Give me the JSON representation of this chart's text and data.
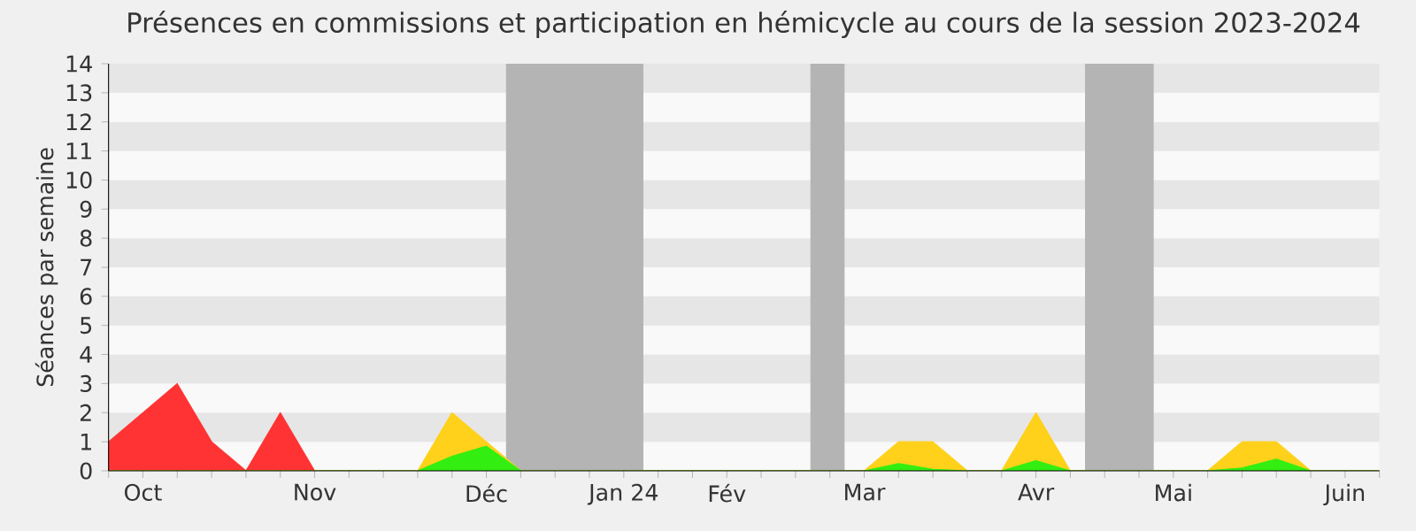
{
  "chart_data": {
    "type": "area",
    "title": "Présences en commissions et participation en hémicycle au cours de la session 2023-2024",
    "ylabel": "Séances par semaine",
    "x": [
      "2023-10-01",
      "2023-10-08",
      "2023-10-15",
      "2023-10-22",
      "2023-10-29",
      "2023-11-05",
      "2023-11-12",
      "2023-11-19",
      "2023-11-26",
      "2023-12-03",
      "2023-12-10",
      "2023-12-17",
      "2023-12-24",
      "2023-12-31",
      "2024-01-07",
      "2024-01-14",
      "2024-01-21",
      "2024-01-28",
      "2024-02-04",
      "2024-02-11",
      "2024-02-18",
      "2024-02-25",
      "2024-03-03",
      "2024-03-10",
      "2024-03-17",
      "2024-03-24",
      "2024-03-31",
      "2024-04-07",
      "2024-04-14",
      "2024-04-21",
      "2024-04-28",
      "2024-05-05",
      "2024-05-12",
      "2024-05-19",
      "2024-05-26",
      "2024-06-02",
      "2024-06-09",
      "2024-06-16"
    ],
    "series": [
      {
        "color": "#ff3333",
        "values": [
          1,
          2,
          3,
          1,
          0,
          2,
          0,
          0,
          0,
          0,
          0,
          0,
          0,
          0,
          0,
          0,
          0,
          0,
          0,
          0,
          0,
          0,
          0,
          0,
          0,
          0,
          0,
          0,
          0,
          0,
          0,
          0,
          0,
          0,
          0,
          0,
          0,
          0
        ]
      },
      {
        "color": "#ffd11a",
        "values": [
          0,
          0,
          0,
          0,
          0,
          0,
          0,
          0,
          0,
          0,
          2,
          1,
          0,
          0,
          0,
          0,
          0,
          0,
          0,
          0,
          0,
          0,
          0,
          1,
          1,
          0,
          0,
          2,
          0,
          0,
          0,
          0,
          0,
          1,
          1,
          0,
          0,
          0
        ]
      },
      {
        "color": "#33ee11",
        "values": [
          0,
          0,
          0,
          0,
          0,
          0,
          0,
          0,
          0,
          0,
          0.5,
          0.85,
          0,
          0,
          0,
          0,
          0,
          0,
          0,
          0,
          0,
          0,
          0,
          0.25,
          0.05,
          0,
          0,
          0.35,
          0,
          0,
          0,
          0,
          0,
          0.1,
          0.4,
          0,
          0,
          0
        ]
      }
    ],
    "xlim": [
      "2023-10-01",
      "2024-06-16"
    ],
    "ylim": [
      0,
      14
    ],
    "xticks": [
      {
        "value": "2023-10-01",
        "label": null
      },
      {
        "value": "2023-10-08",
        "label": "Oct"
      },
      {
        "value": "2023-10-15",
        "label": null
      },
      {
        "value": "2023-10-22",
        "label": null
      },
      {
        "value": "2023-10-29",
        "label": null
      },
      {
        "value": "2023-11-05",
        "label": null
      },
      {
        "value": "2023-11-12",
        "label": "Nov"
      },
      {
        "value": "2023-11-19",
        "label": null
      },
      {
        "value": "2023-11-26",
        "label": null
      },
      {
        "value": "2023-12-03",
        "label": null
      },
      {
        "value": "2023-12-10",
        "label": null
      },
      {
        "value": "2023-12-17",
        "label": "Déc"
      },
      {
        "value": "2023-12-24",
        "label": null
      },
      {
        "value": "2023-12-31",
        "label": null
      },
      {
        "value": "2024-01-07",
        "label": null
      },
      {
        "value": "2024-01-14",
        "label": "Jan 24"
      },
      {
        "value": "2024-01-21",
        "label": null
      },
      {
        "value": "2024-01-28",
        "label": null
      },
      {
        "value": "2024-02-04",
        "label": "Fév"
      },
      {
        "value": "2024-02-11",
        "label": null
      },
      {
        "value": "2024-02-18",
        "label": null
      },
      {
        "value": "2024-02-25",
        "label": null
      },
      {
        "value": "2024-03-03",
        "label": "Mar"
      },
      {
        "value": "2024-03-10",
        "label": null
      },
      {
        "value": "2024-03-17",
        "label": null
      },
      {
        "value": "2024-03-24",
        "label": null
      },
      {
        "value": "2024-03-31",
        "label": null
      },
      {
        "value": "2024-04-07",
        "label": "Avr"
      },
      {
        "value": "2024-04-14",
        "label": null
      },
      {
        "value": "2024-04-21",
        "label": null
      },
      {
        "value": "2024-04-28",
        "label": null
      },
      {
        "value": "2024-05-05",
        "label": "Mai"
      },
      {
        "value": "2024-05-12",
        "label": null
      },
      {
        "value": "2024-05-19",
        "label": null
      },
      {
        "value": "2024-05-26",
        "label": null
      },
      {
        "value": "2024-06-02",
        "label": null
      },
      {
        "value": "2024-06-09",
        "label": "Juin"
      },
      {
        "value": "2024-06-16",
        "label": null
      }
    ],
    "yticks": [
      0,
      1,
      2,
      3,
      4,
      5,
      6,
      7,
      8,
      9,
      10,
      11,
      12,
      13,
      14
    ],
    "bands": [
      {
        "axis": "x",
        "from": "2023-12-21",
        "to": "2024-01-18",
        "color": "#b4b4b4"
      },
      {
        "axis": "x",
        "from": "2024-02-21",
        "to": "2024-02-28",
        "color": "#b4b4b4"
      },
      {
        "axis": "x",
        "from": "2024-04-17",
        "to": "2024-05-01",
        "color": "#b4b4b4"
      }
    ]
  }
}
